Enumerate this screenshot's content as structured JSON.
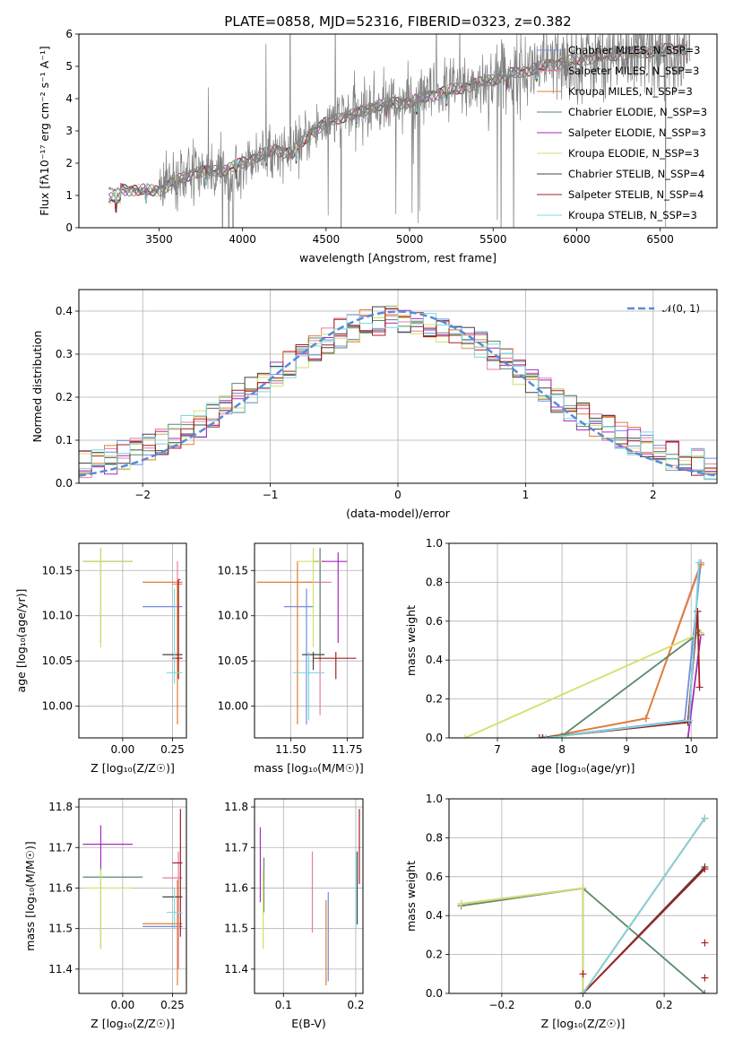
{
  "colors": [
    "#6f8fdf",
    "#e87ca8",
    "#e07f36",
    "#5a8a6a",
    "#a72bbf",
    "#d2e06a",
    "#444444",
    "#a52020",
    "#7dd8dc"
  ],
  "chart_data": [
    {
      "id": "spectrum",
      "type": "line",
      "title": "PLATE=0858, MJD=52316, FIBERID=0323, z=0.382",
      "xlabel": "wavelength [Angstrom, rest frame]",
      "ylabel": "Flux [fλ10⁻¹⁷ erg cm⁻² s⁻¹ A⁻¹]",
      "xlim": [
        3020,
        6840
      ],
      "ylim": [
        0,
        6
      ],
      "xticks": [
        3500,
        4000,
        4500,
        5000,
        5500,
        6000,
        6500
      ],
      "yticks": [
        0,
        1,
        2,
        3,
        4,
        5,
        6
      ],
      "legend_position": "upper right",
      "data_color": "#808080",
      "data_anchors": [
        [
          3200,
          1.2
        ],
        [
          3500,
          1.15
        ],
        [
          3700,
          1.7
        ],
        [
          3900,
          1.8
        ],
        [
          4000,
          2.0
        ],
        [
          4100,
          2.25
        ],
        [
          4200,
          2.4
        ],
        [
          4300,
          2.3
        ],
        [
          4400,
          2.9
        ],
        [
          4500,
          3.25
        ],
        [
          4600,
          3.45
        ],
        [
          4700,
          3.55
        ],
        [
          4800,
          3.8
        ],
        [
          5000,
          3.9
        ],
        [
          5200,
          4.2
        ],
        [
          5400,
          4.45
        ],
        [
          5600,
          4.75
        ],
        [
          5800,
          5.0
        ],
        [
          6000,
          5.2
        ],
        [
          6200,
          5.35
        ],
        [
          6400,
          5.45
        ],
        [
          6600,
          5.55
        ]
      ],
      "series": [
        {
          "name": "Chabrier MILES, N_SSP=3"
        },
        {
          "name": "Salpeter MILES, N_SSP=3"
        },
        {
          "name": "Kroupa MILES, N_SSP=3"
        },
        {
          "name": "Chabrier ELODIE, N_SSP=3"
        },
        {
          "name": "Salpeter ELODIE, N_SSP=3"
        },
        {
          "name": "Kroupa ELODIE, N_SSP=3"
        },
        {
          "name": "Chabrier STELIB, N_SSP=4"
        },
        {
          "name": "Salpeter STELIB, N_SSP=4"
        },
        {
          "name": "Kroupa STELIB, N_SSP=3"
        }
      ]
    },
    {
      "id": "residuals",
      "type": "line",
      "xlabel": "(data-model)/error",
      "ylabel": "Normed distribution",
      "xlim": [
        -2.5,
        2.5
      ],
      "ylim": [
        0,
        0.45
      ],
      "xticks": [
        -2,
        -1,
        0,
        1,
        2
      ],
      "yticks": [
        0.0,
        0.1,
        0.2,
        0.3,
        0.4
      ],
      "grid": true,
      "reference_curve": {
        "name": "𝒩(0, 1)",
        "color": "#5b8ad6"
      },
      "legend_position": "upper right",
      "bins": 50
    },
    {
      "id": "z-age",
      "type": "scatter",
      "xlabel": "Z [log₁₀(Z/Z☉)]",
      "ylabel": "age  [log₁₀(age/yr)]",
      "xlim": [
        -0.22,
        0.32
      ],
      "ylim": [
        9.965,
        10.18
      ],
      "xticks": [
        0.0,
        0.25
      ],
      "yticks": [
        10.0,
        10.05,
        10.1,
        10.15
      ],
      "grid": true,
      "points": [
        {
          "c": 0,
          "x": 0.2,
          "xe": [
            0.1,
            0.3
          ],
          "y": 10.11,
          "ye": [
            10.11,
            10.11
          ]
        },
        {
          "c": 1,
          "x": 0.275,
          "xe": [
            0.25,
            0.3
          ],
          "y": 10.135,
          "ye": [
            10.11,
            10.16
          ]
        },
        {
          "c": 2,
          "x": 0.275,
          "xe": [
            0.1,
            0.3
          ],
          "y": 10.137,
          "ye": [
            9.98,
            10.14
          ]
        },
        {
          "c": 3,
          "x": -0.11,
          "xe": [
            -0.2,
            0.05
          ],
          "y": 10.16,
          "ye": [
            10.07,
            10.175
          ]
        },
        {
          "c": 4,
          "x": 0.285,
          "xe": [
            0.28,
            0.29
          ],
          "y": 10.14,
          "ye": [
            10.14,
            10.14
          ]
        },
        {
          "c": 5,
          "x": -0.11,
          "xe": [
            -0.2,
            0.05
          ],
          "y": 10.16,
          "ye": [
            10.065,
            10.175
          ]
        },
        {
          "c": 6,
          "x": 0.25,
          "xe": [
            0.2,
            0.3
          ],
          "y": 10.057,
          "ye": [
            10.057,
            10.057
          ]
        },
        {
          "c": 7,
          "x": 0.28,
          "xe": [
            0.25,
            0.3
          ],
          "y": 10.053,
          "ye": [
            10.03,
            10.14
          ]
        },
        {
          "c": 8,
          "x": 0.26,
          "xe": [
            0.22,
            0.3
          ],
          "y": 10.037,
          "ye": [
            10.025,
            10.13
          ]
        }
      ]
    },
    {
      "id": "mass-age",
      "type": "scatter",
      "xlabel": "mass [log₁₀(M/M☉)]",
      "xlim": [
        11.34,
        11.82
      ],
      "ylim": [
        9.965,
        10.18
      ],
      "xticks": [
        11.5,
        11.75
      ],
      "yticks": [
        10.0,
        10.05,
        10.1,
        10.15
      ],
      "grid": true,
      "points": [
        {
          "c": 0,
          "x": 11.57,
          "xe": [
            11.47,
            11.6
          ],
          "y": 10.11,
          "ye": [
            9.98,
            10.13
          ]
        },
        {
          "c": 1,
          "x": 11.63,
          "xe": [
            11.57,
            11.68
          ],
          "y": 10.137,
          "ye": [
            9.99,
            10.16
          ]
        },
        {
          "c": 2,
          "x": 11.53,
          "xe": [
            11.35,
            11.6
          ],
          "y": 10.137,
          "ye": [
            9.98,
            10.16
          ]
        },
        {
          "c": 3,
          "x": 11.63,
          "xe": [
            11.6,
            11.65
          ],
          "y": 10.16,
          "ye": [
            10.05,
            10.175
          ]
        },
        {
          "c": 4,
          "x": 11.71,
          "xe": [
            11.6,
            11.75
          ],
          "y": 10.16,
          "ye": [
            10.07,
            10.17
          ]
        },
        {
          "c": 5,
          "x": 11.6,
          "xe": [
            11.53,
            11.64
          ],
          "y": 10.16,
          "ye": [
            10.065,
            10.175
          ]
        },
        {
          "c": 6,
          "x": 11.6,
          "xe": [
            11.55,
            11.65
          ],
          "y": 10.057,
          "ye": [
            10.04,
            10.06
          ]
        },
        {
          "c": 7,
          "x": 11.7,
          "xe": [
            11.6,
            11.79
          ],
          "y": 10.053,
          "ye": [
            10.03,
            10.06
          ]
        },
        {
          "c": 8,
          "x": 11.58,
          "xe": [
            11.51,
            11.65
          ],
          "y": 10.037,
          "ye": [
            9.985,
            10.06
          ]
        }
      ]
    },
    {
      "id": "age-massweight",
      "type": "line",
      "xlabel": "age  [log₁₀(age/yr)]",
      "ylabel": "mass weight",
      "xlim": [
        6.25,
        10.4
      ],
      "ylim": [
        0,
        1.0
      ],
      "xticks": [
        7,
        8,
        9,
        10
      ],
      "yticks": [
        0.0,
        0.2,
        0.4,
        0.6,
        0.8,
        1.0
      ],
      "grid": true,
      "series": [
        {
          "c": 0,
          "x": [
            7.7,
            9.9,
            10.15
          ],
          "y": [
            0.0,
            0.09,
            0.9
          ]
        },
        {
          "c": 1,
          "x": [
            7.7,
            9.3,
            10.15
          ],
          "y": [
            0.0,
            0.1,
            0.9
          ]
        },
        {
          "c": 2,
          "x": [
            7.7,
            9.3,
            10.15
          ],
          "y": [
            0.0,
            0.1,
            0.89
          ]
        },
        {
          "c": 3,
          "x": [
            8.0,
            10.13
          ],
          "y": [
            0.01,
            0.54
          ]
        },
        {
          "c": 4,
          "x": [
            9.95,
            10.15
          ],
          "y": [
            0.0,
            0.53
          ]
        },
        {
          "c": 5,
          "x": [
            6.5,
            10.15
          ],
          "y": [
            0.0,
            0.54
          ]
        },
        {
          "c": 6,
          "x": [
            7.65,
            9.95,
            10.1
          ],
          "y": [
            0.0,
            0.08,
            0.65
          ]
        },
        {
          "c": 7,
          "x": [
            7.7,
            9.95,
            10.1,
            10.13
          ],
          "y": [
            0.0,
            0.08,
            0.65,
            0.26
          ]
        },
        {
          "c": 8,
          "x": [
            7.75,
            9.97,
            10.12
          ],
          "y": [
            0.0,
            0.09,
            0.9
          ]
        }
      ]
    },
    {
      "id": "z-mass",
      "type": "scatter",
      "xlabel": "Z [log₁₀(Z/Z☉)]",
      "ylabel": "mass [log₁₀(M/M☉)]",
      "xlim": [
        -0.22,
        0.32
      ],
      "ylim": [
        11.34,
        11.82
      ],
      "xticks": [
        0.0,
        0.25
      ],
      "yticks": [
        11.4,
        11.5,
        11.6,
        11.7,
        11.8
      ],
      "grid": true,
      "points": [
        {
          "c": 0,
          "x": 0.2,
          "xe": [
            0.1,
            0.3
          ],
          "y": 11.505,
          "ye": [
            11.505,
            11.505
          ]
        },
        {
          "c": 1,
          "x": 0.28,
          "xe": [
            0.2,
            0.3
          ],
          "y": 11.625,
          "ye": [
            11.4,
            11.69
          ]
        },
        {
          "c": 2,
          "x": 0.275,
          "xe": [
            0.1,
            0.3
          ],
          "y": 11.512,
          "ye": [
            11.36,
            11.62
          ]
        },
        {
          "c": 3,
          "x": -0.11,
          "xe": [
            -0.2,
            0.1
          ],
          "y": 11.627,
          "ye": [
            11.45,
            11.65
          ]
        },
        {
          "c": 4,
          "x": -0.11,
          "xe": [
            -0.2,
            0.05
          ],
          "y": 11.708,
          "ye": [
            11.65,
            11.755
          ]
        },
        {
          "c": 5,
          "x": -0.11,
          "xe": [
            -0.2,
            0.05
          ],
          "y": 11.6,
          "ye": [
            11.45,
            11.645
          ]
        },
        {
          "c": 6,
          "x": 0.25,
          "xe": [
            0.2,
            0.3
          ],
          "y": 11.578,
          "ye": [
            11.578,
            11.578
          ]
        },
        {
          "c": 7,
          "x": 0.29,
          "xe": [
            0.25,
            0.3
          ],
          "y": 11.662,
          "ye": [
            11.48,
            11.795
          ]
        },
        {
          "c": 8,
          "x": 0.26,
          "xe": [
            0.22,
            0.3
          ],
          "y": 11.54,
          "ye": [
            11.5,
            11.6
          ]
        }
      ]
    },
    {
      "id": "ebv-mass",
      "type": "scatter",
      "xlabel": "E(B-V)",
      "xlim": [
        0.06,
        0.21
      ],
      "ylim": [
        11.34,
        11.82
      ],
      "xticks": [
        0.1,
        0.2
      ],
      "yticks": [
        11.4,
        11.5,
        11.6,
        11.7,
        11.8
      ],
      "grid": true,
      "points": [
        {
          "c": 0,
          "x": 0.162,
          "ye": [
            11.37,
            11.59
          ]
        },
        {
          "c": 1,
          "x": 0.14,
          "ye": [
            11.49,
            11.69
          ]
        },
        {
          "c": 2,
          "x": 0.159,
          "ye": [
            11.36,
            11.57
          ]
        },
        {
          "c": 3,
          "x": 0.073,
          "ye": [
            11.54,
            11.675
          ]
        },
        {
          "c": 4,
          "x": 0.068,
          "ye": [
            11.565,
            11.75
          ]
        },
        {
          "c": 5,
          "x": 0.072,
          "ye": [
            11.45,
            11.645
          ]
        },
        {
          "c": 6,
          "x": 0.202,
          "ye": [
            11.51,
            11.69
          ]
        },
        {
          "c": 7,
          "x": 0.205,
          "ye": [
            11.61,
            11.795
          ]
        },
        {
          "c": 8,
          "x": 0.2,
          "ye": [
            11.5,
            11.69
          ]
        }
      ]
    },
    {
      "id": "z-massweight",
      "type": "line",
      "xlabel": "Z [log₁₀(Z/Z☉)]",
      "ylabel": "mass weight",
      "xlim": [
        -0.33,
        0.33
      ],
      "ylim": [
        0,
        1.0
      ],
      "xticks": [
        -0.2,
        0.0,
        0.2
      ],
      "yticks": [
        0.0,
        0.2,
        0.4,
        0.6,
        0.8,
        1.0
      ],
      "grid": true,
      "series": [
        {
          "c": 0,
          "x": [
            0.0,
            0.3
          ],
          "y": [
            0.0,
            0.9
          ]
        },
        {
          "c": 1,
          "x": [
            0.0,
            0.3
          ],
          "y": [
            0.0,
            0.9
          ]
        },
        {
          "c": 2,
          "x": [
            0.0,
            0.3
          ],
          "y": [
            0.0,
            0.9
          ]
        },
        {
          "c": 3,
          "x": [
            -0.3,
            0.0,
            0.3
          ],
          "y": [
            0.45,
            0.54,
            0.0
          ]
        },
        {
          "c": 4,
          "x": [
            -0.3,
            0.0,
            0.0
          ],
          "y": [
            0.46,
            0.54,
            0.0
          ]
        },
        {
          "c": 5,
          "x": [
            -0.3,
            0.0,
            0.0
          ],
          "y": [
            0.46,
            0.54,
            0.0
          ]
        },
        {
          "c": 6,
          "x": [
            0.0,
            0.3
          ],
          "y": [
            0.0,
            0.65
          ]
        },
        {
          "c": 7,
          "x": [
            0.0,
            0.3
          ],
          "y": [
            0.0,
            0.64
          ]
        },
        {
          "c": 8,
          "x": [
            0.0,
            0.3
          ],
          "y": [
            0.0,
            0.9
          ]
        }
      ],
      "markers": [
        {
          "c": 7,
          "x": 0.0,
          "y": 0.1
        },
        {
          "c": 7,
          "x": 0.3,
          "y": 0.26
        },
        {
          "c": 7,
          "x": 0.3,
          "y": 0.08
        }
      ]
    }
  ]
}
